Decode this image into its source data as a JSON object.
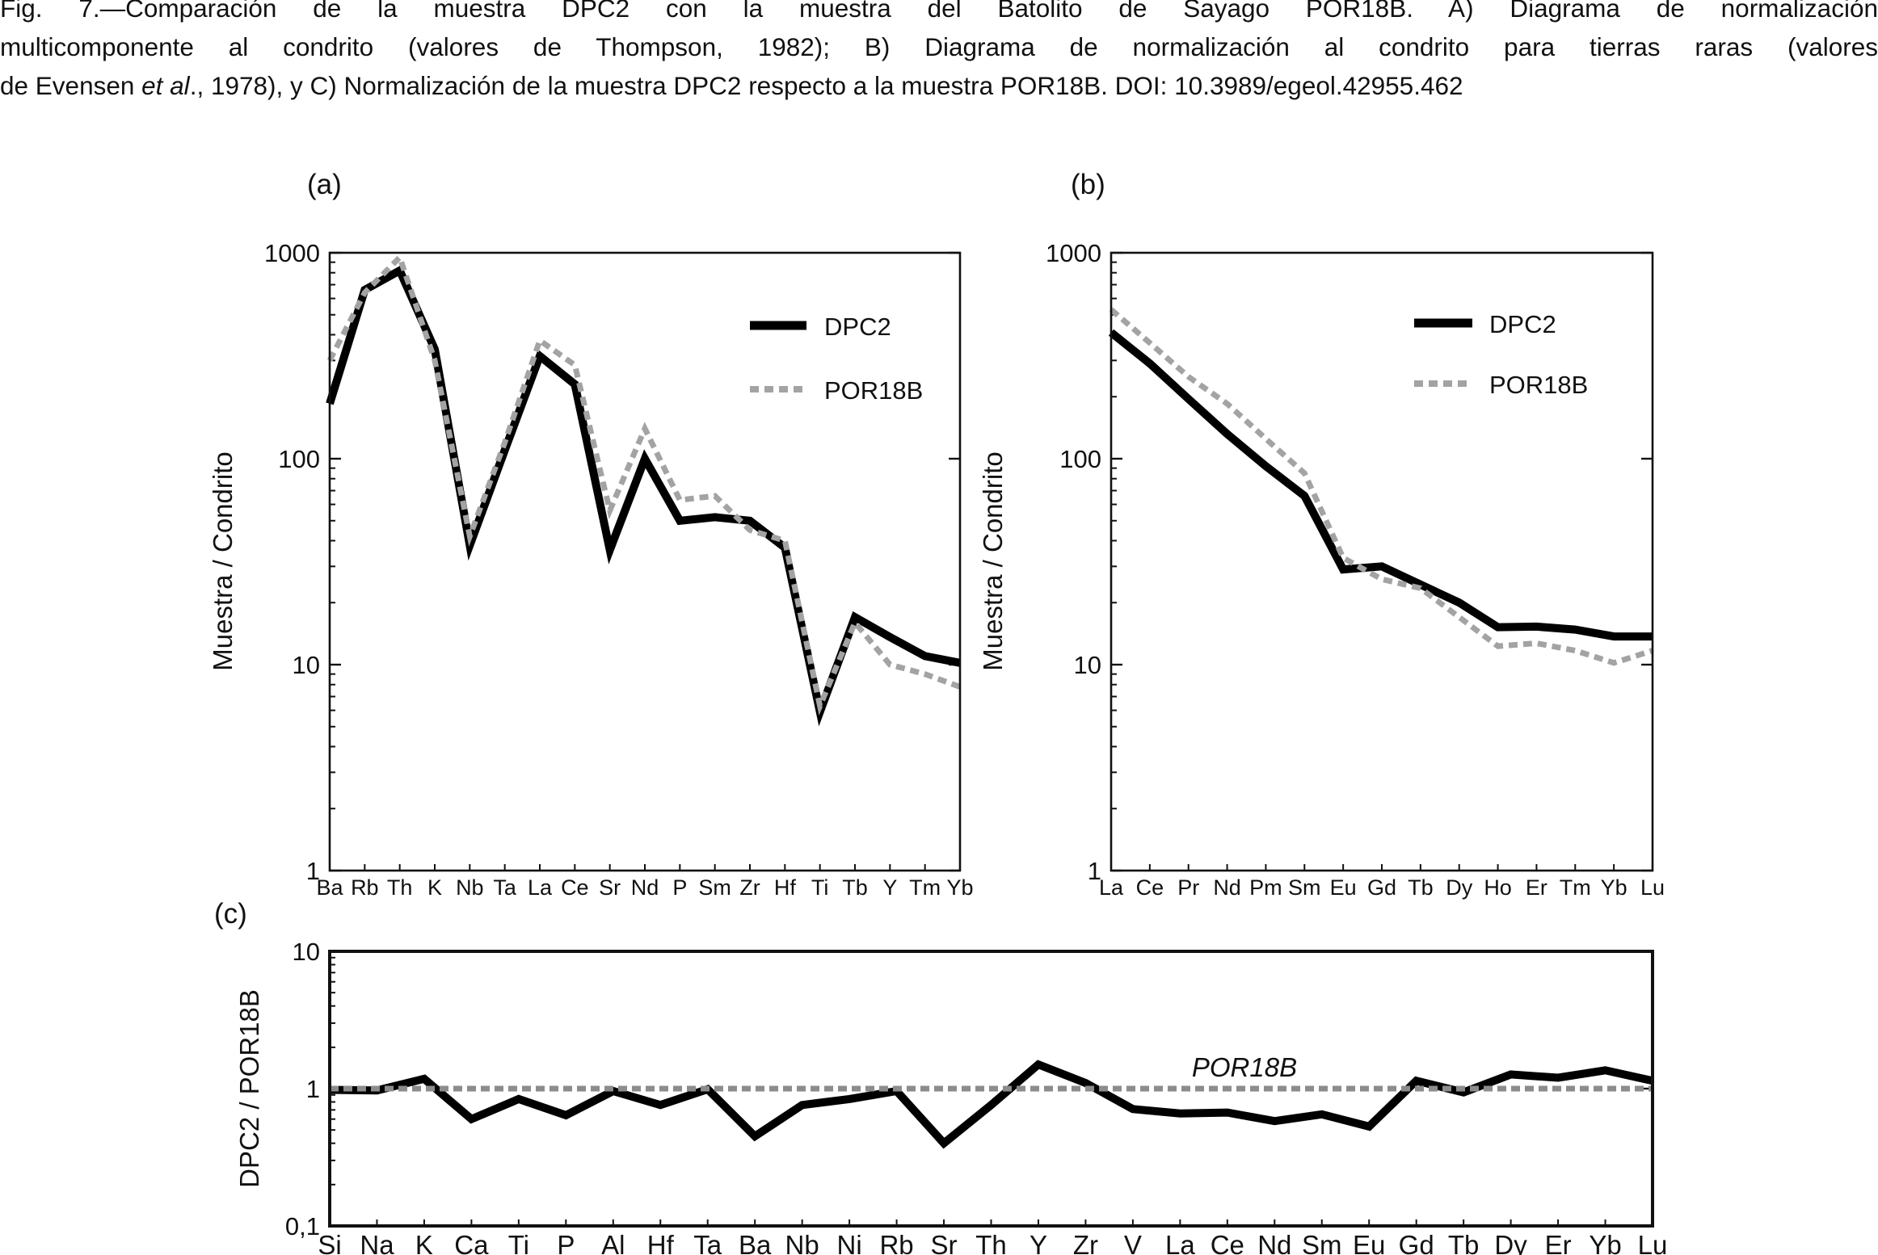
{
  "caption": {
    "line1": "Fig. 7.—Comparación de la muestra DPC2 con la muestra del Batolito de Sayago POR18B. A) Diagrama de normalización",
    "line2": "multicomponente al condrito (valores de Thompson, 1982); B) Diagrama de normalización al condrito para tierras raras (valores",
    "line3_pre": "de Evensen ",
    "line3_ital": "et al",
    "line3_post": "., 1978), y C) Normalización de la muestra DPC2 respecto a la muestra POR18B. DOI: 10.3989/egeol.42955.462"
  },
  "colors": {
    "dpc2": "#000000",
    "por18b": "#a3a3a3",
    "ref_line": "#8c8c8c",
    "axis": "#111111"
  },
  "chart_data": [
    {
      "id": "a",
      "panel_label": "(a)",
      "type": "line",
      "yscale": "log",
      "ylim": [
        1,
        1000
      ],
      "yticks": [
        1,
        10,
        100,
        1000
      ],
      "ytick_labels": [
        "1",
        "10",
        "100",
        "1000"
      ],
      "ylabel": "Muestra / Condrito",
      "xlabel": "",
      "grid": false,
      "legend_position": "top-right",
      "categories": [
        "Ba",
        "Rb",
        "Th",
        "K",
        "Nb",
        "Ta",
        "La",
        "Ce",
        "Sr",
        "Nd",
        "P",
        "Sm",
        "Zr",
        "Hf",
        "Ti",
        "Tb",
        "Y",
        "Tm",
        "Yb"
      ],
      "series": [
        {
          "name": "DPC2",
          "style": "solid",
          "values": [
            185,
            660,
            820,
            340,
            38,
            110,
            315,
            230,
            36,
            100,
            50,
            52,
            50,
            37,
            5.9,
            17,
            13.6,
            11,
            10.2
          ]
        },
        {
          "name": "POR18B",
          "style": "dashed",
          "values": [
            300,
            640,
            950,
            300,
            42,
            120,
            375,
            285,
            56,
            140,
            63,
            66,
            45,
            40,
            6.3,
            16,
            10,
            9,
            7.8
          ]
        }
      ]
    },
    {
      "id": "b",
      "panel_label": "(b)",
      "type": "line",
      "yscale": "log",
      "ylim": [
        1,
        1000
      ],
      "yticks": [
        1,
        10,
        100,
        1000
      ],
      "ytick_labels": [
        "1",
        "10",
        "100",
        "1000"
      ],
      "ylabel": "Muestra / Condrito",
      "xlabel": "",
      "grid": false,
      "legend_position": "top-right",
      "categories": [
        "La",
        "Ce",
        "Pr",
        "Nd",
        "Pm",
        "Sm",
        "Eu",
        "Gd",
        "Tb",
        "Dy",
        "Ho",
        "Er",
        "Tm",
        "Yb",
        "Lu"
      ],
      "series": [
        {
          "name": "DPC2",
          "style": "solid",
          "values": [
            410,
            290,
            195,
            132,
            92,
            66,
            29,
            30,
            24.5,
            20,
            15.2,
            15.3,
            14.8,
            13.7,
            13.7
          ]
        },
        {
          "name": "POR18B",
          "style": "dashed",
          "values": [
            530,
            365,
            250,
            185,
            125,
            85,
            33,
            26,
            23.5,
            17,
            12.3,
            12.7,
            11.7,
            10.2,
            11.7
          ]
        }
      ]
    },
    {
      "id": "c",
      "panel_label": "(c)",
      "type": "line",
      "yscale": "log",
      "ylim": [
        0.1,
        10
      ],
      "yticks": [
        0.1,
        1,
        10
      ],
      "ytick_labels": [
        "0,1",
        "1",
        "10"
      ],
      "ylabel": "DPC2 / POR18B",
      "xlabel": "",
      "grid": false,
      "annotation": "POR18B",
      "categories": [
        "Si",
        "Na",
        "K",
        "Ca",
        "Ti",
        "P",
        "Al",
        "Hf",
        "Ta",
        "Ba",
        "Nb",
        "Ni",
        "Rb",
        "Sr",
        "Th",
        "Y",
        "Zr",
        "V",
        "La",
        "Ce",
        "Nd",
        "Sm",
        "Eu",
        "Gd",
        "Tb",
        "Dy",
        "Er",
        "Yb",
        "Lu"
      ],
      "series": [
        {
          "name": "DPC2",
          "style": "solid",
          "values": [
            0.98,
            0.97,
            1.18,
            0.6,
            0.84,
            0.64,
            0.96,
            0.76,
            0.99,
            0.45,
            0.76,
            0.84,
            0.96,
            0.4,
            0.76,
            1.5,
            1.1,
            0.71,
            0.66,
            0.67,
            0.58,
            0.65,
            0.53,
            1.14,
            0.94,
            1.27,
            1.2,
            1.36,
            1.14
          ]
        },
        {
          "name": "POR18B",
          "style": "dashed",
          "constant": 1
        }
      ]
    }
  ]
}
